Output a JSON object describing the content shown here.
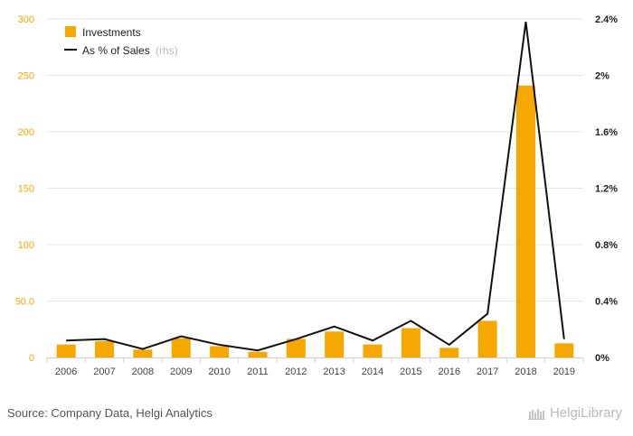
{
  "chart_data": {
    "type": "bar",
    "categories": [
      "2006",
      "2007",
      "2008",
      "2009",
      "2010",
      "2011",
      "2012",
      "2013",
      "2014",
      "2015",
      "2016",
      "2017",
      "2018",
      "2019"
    ],
    "series": [
      {
        "name": "Investments",
        "type": "bar",
        "axis": "left",
        "values": [
          11.5,
          14.5,
          7.0,
          17.0,
          10.0,
          5.0,
          16.5,
          23.0,
          11.5,
          26.0,
          8.5,
          32.5,
          241.0,
          12.5
        ]
      },
      {
        "name": "As % of Sales",
        "name_suffix": "(rhs)",
        "type": "line",
        "axis": "right",
        "values": [
          0.12,
          0.13,
          0.06,
          0.15,
          0.09,
          0.05,
          0.13,
          0.22,
          0.12,
          0.26,
          0.09,
          0.31,
          2.38,
          0.13
        ]
      }
    ],
    "y_left": {
      "ylim": [
        0,
        300
      ],
      "ticks": [
        0,
        50,
        100,
        150,
        200,
        250,
        300
      ],
      "tick_labels": [
        "0",
        "50.0",
        "100",
        "150",
        "200",
        "250",
        "300"
      ]
    },
    "y_right": {
      "ylim": [
        0,
        2.4
      ],
      "ticks": [
        0,
        0.4,
        0.8,
        1.2,
        1.6,
        2.0,
        2.4
      ],
      "tick_labels": [
        "0%",
        "0.4%",
        "0.8%",
        "1.2%",
        "1.6%",
        "2%",
        "2.4%"
      ]
    },
    "grid": true,
    "legend": "top-left",
    "colors": {
      "bar": "#f5a800",
      "line": "#111111",
      "left_ticks": "#f5a800",
      "right_ticks": "#222222",
      "grid": "#e6e6e6"
    }
  },
  "footer": {
    "source": "Source: Company Data, Helgi Analytics",
    "brand": "HelgiLibrary"
  }
}
